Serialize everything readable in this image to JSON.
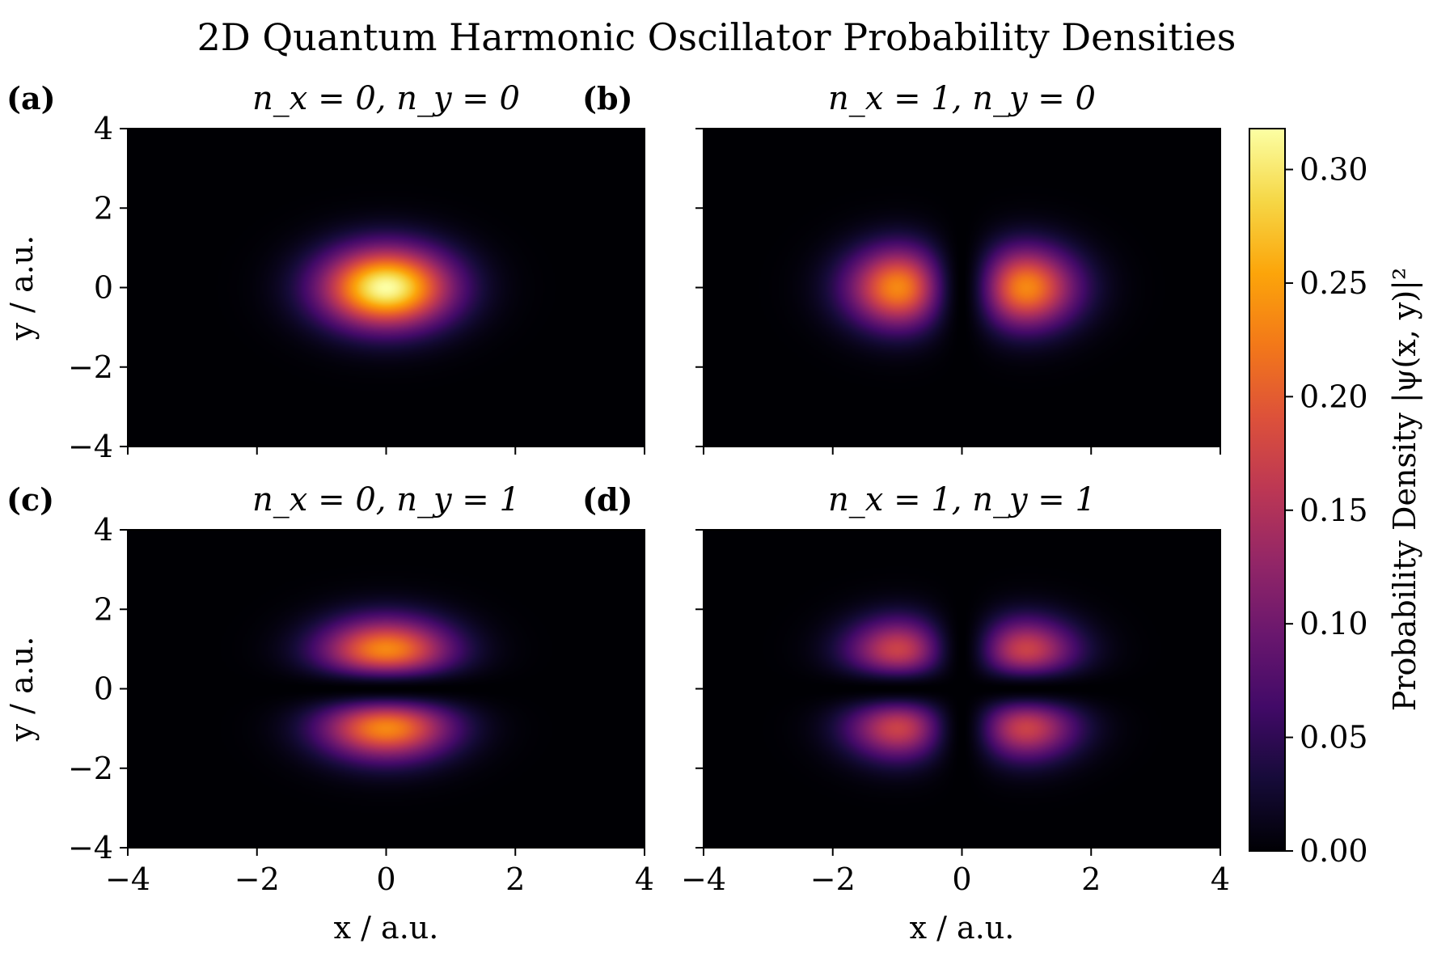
{
  "chart_data": {
    "type": "heatmap",
    "title": "2D Quantum Harmonic Oscillator Probability Densities",
    "colormap": "inferno",
    "colorbar": {
      "label": "Probability Density |ψ(x, y)|²",
      "range": [
        0,
        0.318
      ],
      "ticks": [
        "0.00",
        "0.05",
        "0.10",
        "0.15",
        "0.20",
        "0.25",
        "0.30"
      ],
      "tick_values": [
        0,
        0.05,
        0.1,
        0.15,
        0.2,
        0.25,
        0.3
      ]
    },
    "xlim": [
      -4,
      4
    ],
    "ylim": [
      -4,
      4
    ],
    "x_ticks": [
      "−4",
      "−2",
      "0",
      "2",
      "4"
    ],
    "y_ticks": [
      "4",
      "2",
      "0",
      "−2",
      "−4"
    ],
    "xlabel": "x / a.u.",
    "ylabel": "y / a.u.",
    "panels": [
      {
        "label": "(a)",
        "title": "n_x = 0, n_y = 0",
        "nx": 0,
        "ny": 0
      },
      {
        "label": "(b)",
        "title": "n_x = 1, n_y = 0",
        "nx": 1,
        "ny": 0
      },
      {
        "label": "(c)",
        "title": "n_x = 0, n_y = 1",
        "nx": 0,
        "ny": 1
      },
      {
        "label": "(d)",
        "title": "n_x = 1, n_y = 1",
        "nx": 1,
        "ny": 1
      }
    ]
  }
}
